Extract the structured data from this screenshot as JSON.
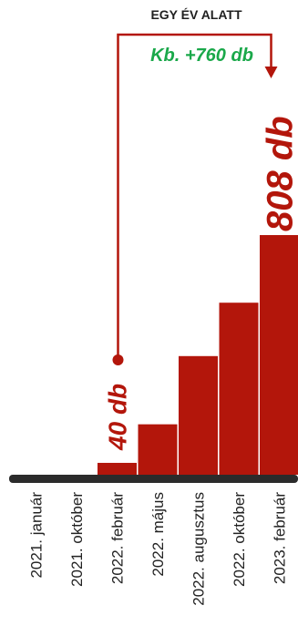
{
  "chart_data": {
    "type": "bar",
    "categories": [
      "2021. január",
      "2021. október",
      "2022. február",
      "2022. május",
      "2022. augusztus",
      "2022. október",
      "2023. február"
    ],
    "values": [
      0,
      0,
      40,
      170,
      400,
      580,
      808
    ],
    "ylim": [
      0,
      808
    ],
    "data_labels": {
      "2022. február": "40 db",
      "2023. február": "808 db"
    },
    "annotation": {
      "title": "EGY ÉV ALATT",
      "value": "Kb. +760 db"
    },
    "grid": false,
    "legend": "none",
    "colors": {
      "bar": "#b3160b",
      "axis": "#2b2b2b",
      "callout_value": "#1aa84a"
    }
  }
}
